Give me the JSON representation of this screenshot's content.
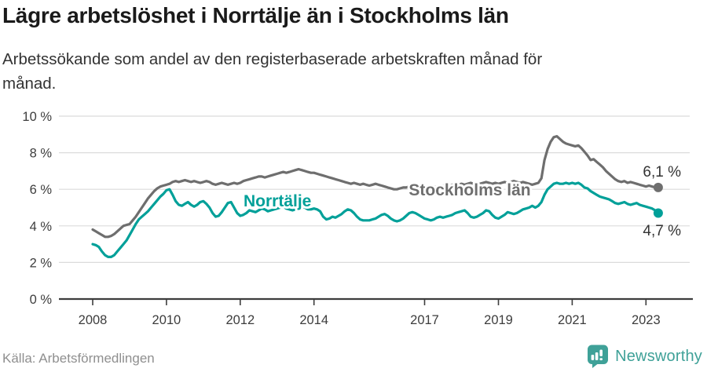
{
  "colors": {
    "background": "#FFFFFF",
    "title_text": "#1A1A1A",
    "subtitle_text": "#333333",
    "axis_line": "#3D3D3D",
    "axis_text": "#3D3D3D",
    "grid": "#DBDBDB",
    "annotation_text": "#333333",
    "source_text": "#8F8F8F",
    "brand_teal": "#3FA198",
    "stockholm_gray": "#6E6E6E",
    "norrtalje_teal": "#00A099"
  },
  "footer": {
    "source": "Källa: Arbetsförmedlingen",
    "brand_name": "Newsworthy",
    "brand_icon": "newsworthy-speech-bubble-bar-chart-icon"
  },
  "chart_data": {
    "type": "line",
    "title": "Lägre arbetslöshet i Norrtälje än i Stockholms län",
    "subtitle": "Arbetssökande som andel av den registerbaserade arbetskraften månad för\nmånad.",
    "unit": "%",
    "x_interval": "monthly",
    "x_start": "2008-01",
    "x_end": "2023-05",
    "xlim": [
      2008,
      2023.6
    ],
    "ylim": [
      0,
      10
    ],
    "grid": true,
    "legend_position": "inline-labels-on-lines",
    "y_ticks": [
      {
        "value": 0,
        "label": "0 %"
      },
      {
        "value": 2,
        "label": "2 %"
      },
      {
        "value": 4,
        "label": "4 %"
      },
      {
        "value": 6,
        "label": "6 %"
      },
      {
        "value": 8,
        "label": "8 %"
      },
      {
        "value": 10,
        "label": "10 %"
      }
    ],
    "x_ticks": [
      {
        "value": 2008,
        "label": "2008"
      },
      {
        "value": 2010,
        "label": "2010"
      },
      {
        "value": 2012,
        "label": "2012"
      },
      {
        "value": 2014,
        "label": "2014"
      },
      {
        "value": 2017,
        "label": "2017"
      },
      {
        "value": 2019,
        "label": "2019"
      },
      {
        "value": 2021,
        "label": "2021"
      },
      {
        "value": 2023,
        "label": "2023"
      }
    ],
    "series": [
      {
        "name": "Stockholms län",
        "color": "#6E6E6E",
        "end_value": 6.1,
        "end_label": "6,1 %",
        "values": [
          3.8,
          3.7,
          3.6,
          3.5,
          3.4,
          3.4,
          3.45,
          3.55,
          3.7,
          3.85,
          4.0,
          4.05,
          4.1,
          4.3,
          4.5,
          4.75,
          5.0,
          5.25,
          5.5,
          5.7,
          5.9,
          6.05,
          6.15,
          6.2,
          6.25,
          6.3,
          6.4,
          6.45,
          6.4,
          6.45,
          6.5,
          6.45,
          6.4,
          6.45,
          6.4,
          6.35,
          6.4,
          6.45,
          6.4,
          6.3,
          6.25,
          6.3,
          6.35,
          6.3,
          6.25,
          6.3,
          6.35,
          6.3,
          6.35,
          6.45,
          6.5,
          6.55,
          6.6,
          6.65,
          6.7,
          6.7,
          6.65,
          6.7,
          6.75,
          6.8,
          6.85,
          6.9,
          6.95,
          6.9,
          6.95,
          7.0,
          7.05,
          7.1,
          7.05,
          7.0,
          6.95,
          6.9,
          6.9,
          6.85,
          6.8,
          6.75,
          6.7,
          6.65,
          6.6,
          6.55,
          6.5,
          6.45,
          6.4,
          6.35,
          6.3,
          6.35,
          6.3,
          6.25,
          6.3,
          6.25,
          6.2,
          6.25,
          6.3,
          6.25,
          6.2,
          6.15,
          6.1,
          6.05,
          6.0,
          6.0,
          6.05,
          6.1,
          6.1,
          6.15,
          6.1,
          6.1,
          6.05,
          6.1,
          6.1,
          6.15,
          6.2,
          6.15,
          6.1,
          6.15,
          6.2,
          6.25,
          6.2,
          6.25,
          6.3,
          6.25,
          6.3,
          6.25,
          6.3,
          6.35,
          6.3,
          6.35,
          6.3,
          6.35,
          6.4,
          6.35,
          6.3,
          6.35,
          6.3,
          6.35,
          6.4,
          6.35,
          6.4,
          6.45,
          6.4,
          6.35,
          6.4,
          6.35,
          6.3,
          6.25,
          6.3,
          6.35,
          6.6,
          7.6,
          8.2,
          8.6,
          8.85,
          8.9,
          8.75,
          8.6,
          8.5,
          8.45,
          8.4,
          8.35,
          8.4,
          8.25,
          8.05,
          7.85,
          7.6,
          7.65,
          7.5,
          7.35,
          7.2,
          7.0,
          6.85,
          6.7,
          6.55,
          6.45,
          6.4,
          6.45,
          6.35,
          6.4,
          6.35,
          6.3,
          6.25,
          6.2,
          6.15,
          6.2,
          6.15,
          6.1,
          6.1
        ]
      },
      {
        "name": "Norrtälje",
        "color": "#00A099",
        "end_value": 4.7,
        "end_label": "4,7 %",
        "values": [
          3.0,
          2.95,
          2.85,
          2.6,
          2.4,
          2.3,
          2.3,
          2.4,
          2.6,
          2.8,
          3.0,
          3.2,
          3.5,
          3.8,
          4.1,
          4.35,
          4.5,
          4.65,
          4.8,
          5.0,
          5.2,
          5.4,
          5.6,
          5.75,
          5.95,
          6.0,
          5.7,
          5.35,
          5.15,
          5.1,
          5.2,
          5.3,
          5.15,
          5.05,
          5.15,
          5.3,
          5.35,
          5.2,
          5.0,
          4.7,
          4.5,
          4.55,
          4.75,
          5.0,
          5.25,
          5.3,
          5.0,
          4.7,
          4.55,
          4.6,
          4.7,
          4.85,
          4.8,
          4.75,
          4.85,
          4.95,
          4.9,
          4.8,
          4.85,
          4.9,
          4.95,
          5.0,
          5.05,
          4.95,
          4.9,
          4.85,
          4.9,
          5.0,
          5.05,
          5.0,
          4.9,
          4.9,
          4.95,
          4.9,
          4.8,
          4.5,
          4.35,
          4.4,
          4.5,
          4.45,
          4.55,
          4.65,
          4.8,
          4.9,
          4.85,
          4.7,
          4.5,
          4.35,
          4.3,
          4.3,
          4.3,
          4.35,
          4.4,
          4.5,
          4.6,
          4.65,
          4.55,
          4.4,
          4.3,
          4.25,
          4.3,
          4.4,
          4.55,
          4.7,
          4.75,
          4.7,
          4.6,
          4.5,
          4.4,
          4.35,
          4.3,
          4.35,
          4.45,
          4.5,
          4.45,
          4.5,
          4.55,
          4.6,
          4.7,
          4.75,
          4.8,
          4.85,
          4.7,
          4.5,
          4.45,
          4.5,
          4.6,
          4.7,
          4.85,
          4.8,
          4.6,
          4.45,
          4.4,
          4.5,
          4.6,
          4.75,
          4.7,
          4.65,
          4.7,
          4.8,
          4.9,
          4.95,
          5.0,
          5.1,
          5.0,
          5.1,
          5.3,
          5.7,
          6.0,
          6.15,
          6.3,
          6.35,
          6.3,
          6.3,
          6.35,
          6.3,
          6.35,
          6.3,
          6.35,
          6.25,
          6.1,
          6.05,
          5.9,
          5.8,
          5.7,
          5.6,
          5.55,
          5.5,
          5.45,
          5.35,
          5.25,
          5.2,
          5.25,
          5.3,
          5.2,
          5.15,
          5.2,
          5.25,
          5.15,
          5.1,
          5.05,
          5.0,
          4.95,
          4.85,
          4.7
        ]
      }
    ]
  }
}
